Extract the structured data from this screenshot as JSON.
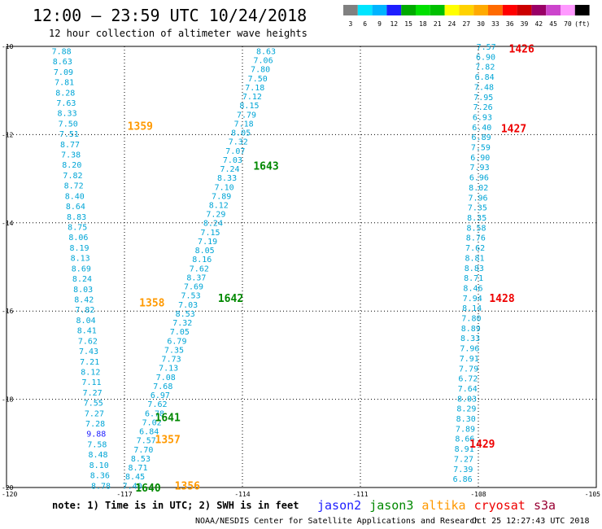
{
  "header": {
    "title": "12:00 – 23:59 UTC 10/24/2018",
    "subtitle": "12 hour collection of altimeter wave heights"
  },
  "colorbar": {
    "labels": [
      "3",
      "6",
      "9",
      "12",
      "15",
      "18",
      "21",
      "24",
      "27",
      "30",
      "33",
      "36",
      "39",
      "42",
      "45",
      "70",
      "(ft)"
    ],
    "colors": [
      "#808080",
      "#00e5ff",
      "#00b4ff",
      "#1e1eff",
      "#00aa00",
      "#00e000",
      "#00c000",
      "#ffff00",
      "#ffd200",
      "#ffaa00",
      "#ff6a00",
      "#ff0000",
      "#cc0000",
      "#990066",
      "#cc44cc",
      "#ff99ff",
      "#000000"
    ]
  },
  "note": "note: 1) Time is in UTC; 2) SWH is in feet",
  "legend": [
    {
      "name": "jason2",
      "color": "#1e1eff"
    },
    {
      "name": "jason3",
      "color": "#008800"
    },
    {
      "name": "altika",
      "color": "#ff9900"
    },
    {
      "name": "cryosat",
      "color": "#ee0000"
    },
    {
      "name": "s3a",
      "color": "#990033"
    }
  ],
  "footer": "NOAA/NESDIS Center for Satellite Applications and Research",
  "timestamp": "Oct 25 12:27:43 UTC 2018",
  "chart_data": {
    "type": "scatter",
    "title": "12:00 – 23:59 UTC 10/24/2018",
    "xlabel": "",
    "ylabel": "",
    "xlim": [
      -120,
      -105
    ],
    "ylim": [
      -20,
      -10
    ],
    "xticks": [
      "-120",
      "-117",
      "-114",
      "-111",
      "-108",
      "-105"
    ],
    "yticks": [
      "-10",
      "-12",
      "-14",
      "-16",
      "-18",
      "-20"
    ],
    "grid": true,
    "tracks": [
      {
        "id": "t1359",
        "color": "#00a5d6",
        "lat_start": -10.1,
        "lat_end": -19.95,
        "lon_start": -118.6,
        "lon_end": -117.6,
        "values": [
          "7.88",
          "8.63",
          "7.09",
          "7.81",
          "8.28",
          "7.63",
          "8.33",
          "7.50",
          "7.51",
          "8.77",
          "7.38",
          "8.20",
          "7.82",
          "8.72",
          "8.40",
          "8.64",
          "8.83",
          "8.75",
          "8.06",
          "8.19",
          "8.13",
          "8.69",
          "8.24",
          "8.03",
          "8.42",
          "7.82",
          "8.04",
          "8.41",
          "7.62",
          "7.43",
          "7.21",
          "8.12",
          "7.11",
          "7.27",
          "7.55",
          "7.27",
          "7.28",
          "9.88",
          "7.58",
          "8.48",
          "8.10",
          "8.36",
          "8.78"
        ]
      },
      {
        "id": "t1643",
        "color": "#00a5d6",
        "lat_start": -10.1,
        "lat_end": -19.95,
        "lon_start": -113.4,
        "lon_end": -116.8,
        "values": [
          "8.63",
          "7.06",
          "7.80",
          "7.50",
          "7.18",
          "7.12",
          "8.15",
          "7.79",
          "7.18",
          "8.05",
          "7.32",
          "7.07",
          "7.03",
          "7.24",
          "8.33",
          "7.10",
          "7.89",
          "8.12",
          "7.29",
          "8.24",
          "7.15",
          "7.19",
          "8.05",
          "8.16",
          "7.62",
          "8.37",
          "7.69",
          "7.53",
          "7.03",
          "8.53",
          "7.32",
          "7.05",
          "6.79",
          "7.35",
          "7.73",
          "7.13",
          "7.08",
          "7.68",
          "6.97",
          "7.62",
          "6.78",
          "7.02",
          "6.84",
          "7.57",
          "7.70",
          "8.53",
          "8.71",
          "8.45",
          "7.40"
        ]
      },
      {
        "id": "t1428",
        "color": "#00a5d6",
        "lat_start": -10.0,
        "lat_end": -19.8,
        "lon_start": -107.8,
        "lon_end": -108.4,
        "values": [
          "7.57",
          "6.90",
          "7.82",
          "6.84",
          "7.48",
          "7.95",
          "7.26",
          "6.93",
          "6.40",
          "6.89",
          "7.59",
          "6.90",
          "7.93",
          "6.96",
          "8.02",
          "7.96",
          "7.35",
          "8.35",
          "8.58",
          "8.76",
          "7.62",
          "8.81",
          "8.83",
          "8.71",
          "8.46",
          "7.94",
          "8.14",
          "7.80",
          "8.89",
          "8.33",
          "7.96",
          "7.91",
          "7.79",
          "6.72",
          "7.64",
          "8.03",
          "8.29",
          "8.30",
          "7.89",
          "8.66",
          "8.91",
          "7.27",
          "7.39",
          "6.86"
        ]
      }
    ],
    "annotations": [
      {
        "text": "1359",
        "lon": -116.6,
        "lat": -11.8,
        "color": "#ff9900"
      },
      {
        "text": "1358",
        "lon": -116.3,
        "lat": -15.8,
        "color": "#ff9900"
      },
      {
        "text": "1357",
        "lon": -115.9,
        "lat": -18.9,
        "color": "#ff9900"
      },
      {
        "text": "1356",
        "lon": -115.4,
        "lat": -19.95,
        "color": "#ff9900"
      },
      {
        "text": "1643",
        "lon": -113.4,
        "lat": -12.7,
        "color": "#008800"
      },
      {
        "text": "1642",
        "lon": -114.3,
        "lat": -15.7,
        "color": "#008800"
      },
      {
        "text": "1641",
        "lon": -115.9,
        "lat": -18.4,
        "color": "#008800"
      },
      {
        "text": "1640",
        "lon": -116.4,
        "lat": -20.0,
        "color": "#008800"
      },
      {
        "text": "1426",
        "lon": -106.9,
        "lat": -10.05,
        "color": "#ee0000"
      },
      {
        "text": "1427",
        "lon": -107.1,
        "lat": -11.85,
        "color": "#ee0000"
      },
      {
        "text": "1428",
        "lon": -107.4,
        "lat": -15.7,
        "color": "#ee0000"
      },
      {
        "text": "1429",
        "lon": -107.9,
        "lat": -19.0,
        "color": "#ee0000"
      }
    ]
  }
}
